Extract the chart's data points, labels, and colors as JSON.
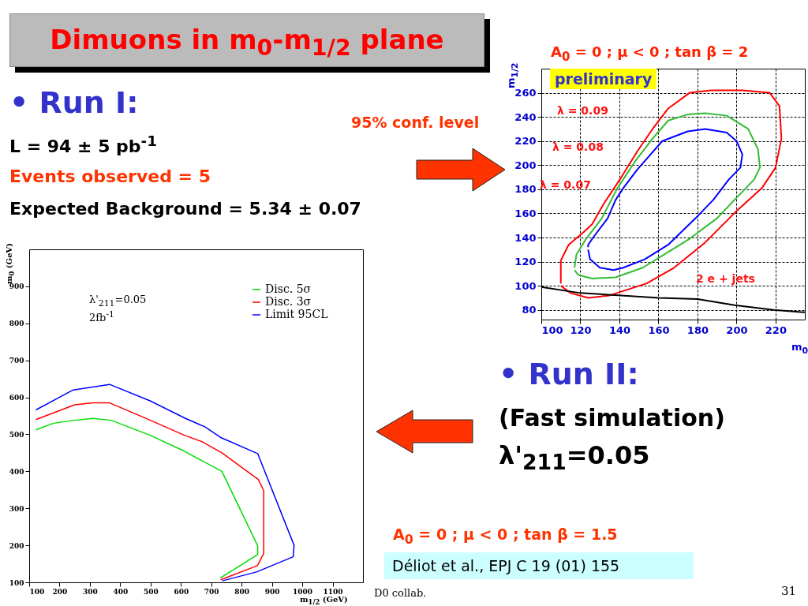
{
  "chart_data": [
    {
      "type": "line",
      "title": "A$_{0}$ = 0 ; μ < 0 ; tan β = 2",
      "xlabel": "m$_{0}$",
      "ylabel": "m$_{1/2}$",
      "xlim": [
        100,
        235
      ],
      "ylim": [
        72,
        280
      ],
      "xticks": [
        100,
        120,
        140,
        160,
        180,
        200,
        220
      ],
      "yticks": [
        80,
        100,
        120,
        140,
        160,
        180,
        200,
        220,
        240,
        260
      ],
      "grid": true,
      "series": [
        {
          "color": "#ff0000",
          "x": [
            110,
            110,
            114,
            122,
            126,
            132,
            141,
            149,
            157,
            165,
            176,
            187,
            203,
            217,
            222,
            223,
            220,
            213,
            200,
            184,
            168,
            154,
            135,
            124,
            115,
            110
          ],
          "values": [
            102,
            121,
            134,
            145,
            151,
            168,
            190,
            211,
            230,
            247,
            260,
            262,
            262,
            260,
            249,
            222,
            198,
            181,
            162,
            136,
            115,
            102,
            92,
            90,
            94,
            100
          ]
        },
        {
          "color": "#33bb33",
          "x": [
            117,
            118,
            123,
            131,
            139,
            148,
            157,
            165,
            175,
            184,
            195,
            206,
            211,
            212,
            209,
            200,
            190,
            176,
            165,
            152,
            138,
            126,
            119,
            117
          ],
          "values": [
            115,
            126,
            139,
            156,
            181,
            203,
            222,
            237,
            242,
            243,
            241,
            230,
            213,
            198,
            188,
            173,
            156,
            139,
            128,
            115,
            107,
            106,
            109,
            113
          ]
        },
        {
          "color": "#0000ff",
          "x": [
            124,
            125,
            130,
            137,
            142,
            153,
            165,
            179,
            188,
            196,
            202,
            203,
            200,
            195,
            184,
            175,
            162,
            156,
            149,
            142,
            138,
            134,
            127,
            124,
            124
          ],
          "values": [
            130,
            122,
            115,
            113,
            115,
            122,
            134,
            156,
            171,
            188,
            198,
            209,
            220,
            227,
            230,
            228,
            220,
            209,
            196,
            181,
            171,
            156,
            141,
            134,
            132
          ]
        },
        {
          "color": "#000000",
          "x": [
            100,
            120,
            141,
            160,
            180,
            199,
            219,
            235
          ],
          "values": [
            99,
            94,
            92,
            90,
            89,
            84,
            80,
            78
          ]
        }
      ],
      "annotations": [
        "Dimuons in m$_{0}$-m$_{1/2}$ plane",
        "• Run I:",
        "L = 94 ± 5 pb$^{-1}$",
        "Events observed = 5",
        "Expected Background = 5.34 ± 0.07",
        "95% conf. level",
        "preliminary",
        "λ = 0.09",
        "λ = 0.08",
        "λ = 0.07",
        "2 e + jets"
      ]
    },
    {
      "type": "line",
      "xlabel": "m$_{1/2}$ (GeV)",
      "ylabel": "m$_{0}$ (GeV)",
      "xlim": [
        100,
        1200
      ],
      "ylim": [
        100,
        1000
      ],
      "xticks": [
        100,
        200,
        300,
        400,
        500,
        600,
        700,
        800,
        900,
        1000,
        1100
      ],
      "yticks": [
        100,
        200,
        300,
        400,
        500,
        600,
        700,
        800,
        900
      ],
      "legend": "top right",
      "series": [
        {
          "name": "Disc. 5σ",
          "color": "#00dd00",
          "x": [
            122,
            180,
            250,
            310,
            370,
            500,
            610,
            735,
            853,
            853,
            730
          ],
          "values": [
            512,
            530,
            538,
            543,
            538,
            497,
            455,
            400,
            199,
            175,
            112
          ]
        },
        {
          "name": "Disc. 3σ",
          "color": "#ff0000",
          "x": [
            122,
            250,
            310,
            365,
            480,
            610,
            670,
            735,
            855,
            873,
            873,
            852,
            731
          ],
          "values": [
            540,
            580,
            585,
            585,
            545,
            498,
            480,
            450,
            378,
            348,
            178,
            145,
            107
          ]
        },
        {
          "name": "Limit 95CL",
          "color": "#0000ff",
          "x": [
            122,
            245,
            365,
            500,
            615,
            680,
            730,
            853,
            973,
            970,
            849,
            736
          ],
          "values": [
            566,
            620,
            635,
            590,
            543,
            520,
            492,
            448,
            200,
            169,
            128,
            104
          ]
        }
      ],
      "annotations": [
        "λ'$_{211}$=0.05",
        "2fb$^{-1}$",
        "• Run II:",
        "(Fast simulation)",
        "λ'$_{211}$=0.05",
        "A$_{0}$ = 0 ; μ < 0 ; tan β = 1.5",
        "Déliot et al., EPJ C 19 (01) 155",
        "D0 collab.",
        "31"
      ]
    }
  ]
}
